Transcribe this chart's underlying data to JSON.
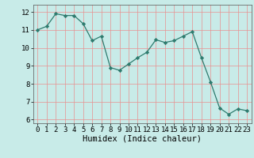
{
  "x": [
    0,
    1,
    2,
    3,
    4,
    5,
    6,
    7,
    8,
    9,
    10,
    11,
    12,
    13,
    14,
    15,
    16,
    17,
    18,
    19,
    20,
    21,
    22,
    23
  ],
  "y": [
    11.0,
    11.2,
    11.9,
    11.8,
    11.8,
    11.35,
    10.4,
    10.65,
    8.9,
    8.75,
    9.1,
    9.45,
    9.75,
    10.45,
    10.3,
    10.4,
    10.65,
    10.9,
    9.45,
    8.1,
    6.65,
    6.3,
    6.6,
    6.5
  ],
  "line_color": "#2e7b6e",
  "marker": "D",
  "marker_size": 2.2,
  "bg_color": "#c8ebe8",
  "grid_color": "#e89090",
  "xlabel": "Humidex (Indice chaleur)",
  "xlabel_fontsize": 7.5,
  "xlim": [
    -0.5,
    23.5
  ],
  "ylim": [
    5.8,
    12.4
  ],
  "yticks": [
    6,
    7,
    8,
    9,
    10,
    11,
    12
  ],
  "xticks": [
    0,
    1,
    2,
    3,
    4,
    5,
    6,
    7,
    8,
    9,
    10,
    11,
    12,
    13,
    14,
    15,
    16,
    17,
    18,
    19,
    20,
    21,
    22,
    23
  ],
  "tick_fontsize": 6.5
}
